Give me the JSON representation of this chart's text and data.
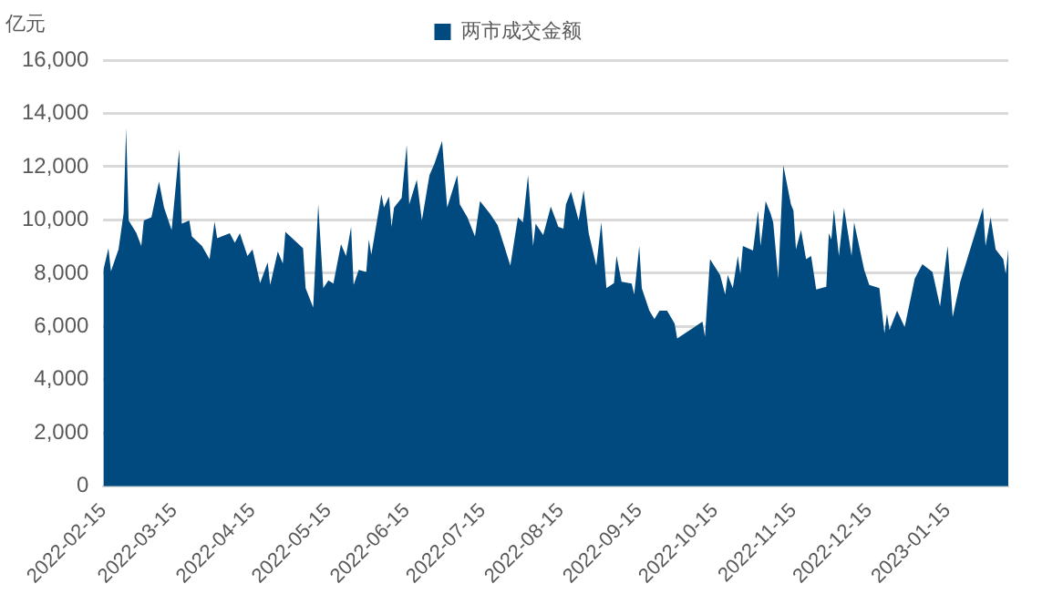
{
  "chart_data": {
    "type": "area",
    "ylabel": "亿元",
    "legend": "top",
    "series": [
      {
        "name": "两市成交金额",
        "color": "#004a80",
        "x": [
          "2022-02-15",
          "2022-02-17",
          "2022-02-18",
          "2022-02-21",
          "2022-02-23",
          "2022-02-24",
          "2022-02-25",
          "2022-02-28",
          "2022-03-02",
          "2022-03-03",
          "2022-03-06",
          "2022-03-09",
          "2022-03-11",
          "2022-03-14",
          "2022-03-17",
          "2022-03-18",
          "2022-03-21",
          "2022-03-22",
          "2022-03-26",
          "2022-03-29",
          "2022-03-31",
          "2022-04-01",
          "2022-04-06",
          "2022-04-08",
          "2022-04-10",
          "2022-04-13",
          "2022-04-15",
          "2022-04-18",
          "2022-04-21",
          "2022-04-22",
          "2022-04-25",
          "2022-04-27",
          "2022-04-28",
          "2022-05-05",
          "2022-05-06",
          "2022-05-09",
          "2022-05-11",
          "2022-05-13",
          "2022-05-15",
          "2022-05-17",
          "2022-05-20",
          "2022-05-22",
          "2022-05-24",
          "2022-05-25",
          "2022-05-27",
          "2022-05-30",
          "2022-05-31",
          "2022-06-01",
          "2022-06-05",
          "2022-06-06",
          "2022-06-08",
          "2022-06-09",
          "2022-06-10",
          "2022-06-13",
          "2022-06-15",
          "2022-06-16",
          "2022-06-19",
          "2022-06-21",
          "2022-06-24",
          "2022-06-26",
          "2022-06-29",
          "2022-07-01",
          "2022-07-05",
          "2022-07-06",
          "2022-07-09",
          "2022-07-12",
          "2022-07-14",
          "2022-07-18",
          "2022-07-21",
          "2022-07-26",
          "2022-07-29",
          "2022-07-31",
          "2022-08-02",
          "2022-08-04",
          "2022-08-05",
          "2022-08-08",
          "2022-08-11",
          "2022-08-14",
          "2022-08-16",
          "2022-08-17",
          "2022-08-19",
          "2022-08-21",
          "2022-08-22",
          "2022-08-24",
          "2022-08-26",
          "2022-08-29",
          "2022-08-31",
          "2022-09-02",
          "2022-09-05",
          "2022-09-06",
          "2022-09-08",
          "2022-09-12",
          "2022-09-13",
          "2022-09-15",
          "2022-09-16",
          "2022-09-19",
          "2022-09-21",
          "2022-09-23",
          "2022-09-26",
          "2022-09-29",
          "2022-09-30",
          "2022-10-10",
          "2022-10-11",
          "2022-10-12",
          "2022-10-13",
          "2022-10-17",
          "2022-10-19",
          "2022-10-20",
          "2022-10-22",
          "2022-10-24",
          "2022-10-25",
          "2022-10-26",
          "2022-10-30",
          "2022-11-01",
          "2022-11-02",
          "2022-11-04",
          "2022-11-06",
          "2022-11-07",
          "2022-11-09",
          "2022-11-11",
          "2022-11-12",
          "2022-11-14",
          "2022-11-15",
          "2022-11-16",
          "2022-11-18",
          "2022-11-20",
          "2022-11-22",
          "2022-11-24",
          "2022-11-28",
          "2022-11-29",
          "2022-11-30",
          "2022-12-01",
          "2022-12-03",
          "2022-12-05",
          "2022-12-08",
          "2022-12-09",
          "2022-12-13",
          "2022-12-15",
          "2022-12-19",
          "2022-12-21",
          "2022-12-22",
          "2022-12-23",
          "2022-12-26",
          "2022-12-29",
          "2023-01-02",
          "2023-01-05",
          "2023-01-09",
          "2023-01-12",
          "2023-01-15",
          "2023-01-17",
          "2023-01-20",
          "2023-01-29",
          "2023-01-30",
          "2023-02-01",
          "2023-02-03",
          "2023-02-06",
          "2023-02-07",
          "2023-02-08"
        ],
        "values": [
          8120,
          8940,
          8070,
          8900,
          10250,
          13450,
          9980,
          9520,
          9020,
          9980,
          10100,
          11440,
          10470,
          9620,
          12650,
          9860,
          9980,
          9380,
          9020,
          8530,
          9940,
          9310,
          9500,
          9140,
          9500,
          8650,
          8890,
          7630,
          8410,
          7560,
          8820,
          8360,
          9550,
          8940,
          7440,
          6710,
          10590,
          7440,
          7730,
          7610,
          9090,
          8650,
          9740,
          7560,
          8120,
          8050,
          9260,
          8700,
          10960,
          10470,
          10880,
          9740,
          10470,
          10830,
          12820,
          10590,
          11510,
          9980,
          11680,
          12120,
          12960,
          10470,
          11680,
          10590,
          10100,
          9380,
          10710,
          10230,
          9800,
          8290,
          10100,
          9910,
          11680,
          9020,
          9860,
          9430,
          10500,
          9740,
          9670,
          10590,
          11070,
          10350,
          9980,
          11120,
          9500,
          8290,
          9910,
          7440,
          7630,
          8650,
          7680,
          7610,
          7200,
          9020,
          7440,
          6590,
          6280,
          6590,
          6590,
          6110,
          5550,
          6180,
          5620,
          7080,
          8530,
          7930,
          7200,
          7930,
          7440,
          8650,
          7970,
          9020,
          8850,
          10350,
          9020,
          10710,
          10230,
          9900,
          7800,
          12050,
          11560,
          10590,
          10350,
          8890,
          9620,
          8530,
          8650,
          7390,
          7490,
          9500,
          9260,
          10400,
          8650,
          10470,
          8650,
          9910,
          8120,
          7560,
          7440,
          5740,
          6470,
          5870,
          6590,
          5980,
          7800,
          8340,
          8050,
          6760,
          9020,
          6350,
          7680,
          10470,
          9020,
          10100,
          8890,
          8530,
          7970,
          8890
        ]
      }
    ],
    "xlim": [
      "2022-02-15",
      "2023-02-08"
    ],
    "xticks": [
      "2022-02-15",
      "2022-03-15",
      "2022-04-15",
      "2022-05-15",
      "2022-06-15",
      "2022-07-15",
      "2022-08-15",
      "2022-09-15",
      "2022-10-15",
      "2022-11-15",
      "2022-12-15",
      "2023-01-15"
    ],
    "ylim": [
      0,
      16000
    ],
    "yticks": [
      0,
      {
        "value": 2000,
        "label": "2,000"
      },
      {
        "value": 4000,
        "label": "4,000"
      },
      {
        "value": 6000,
        "label": "6,000"
      },
      {
        "value": 8000,
        "label": "8,000"
      },
      {
        "value": 10000,
        "label": "10,000"
      },
      {
        "value": 12000,
        "label": "12,000"
      },
      {
        "value": 14000,
        "label": "14,000"
      },
      {
        "value": 16000,
        "label": "16,000"
      }
    ],
    "grid": "y"
  }
}
